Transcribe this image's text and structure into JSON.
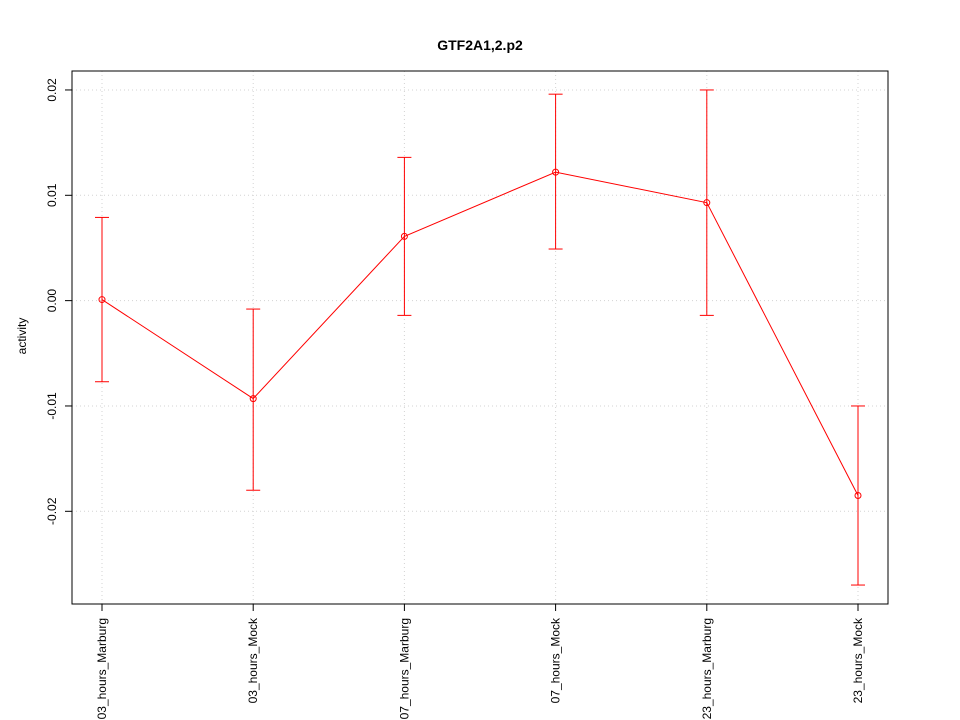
{
  "chart_data": {
    "type": "line",
    "title": "GTF2A1,2.p2",
    "xlabel": "",
    "ylabel": "activity",
    "categories": [
      "03_hours_Marburg",
      "03_hours_Mock",
      "07_hours_Marburg",
      "07_hours_Mock",
      "23_hours_Marburg",
      "23_hours_Mock"
    ],
    "series": [
      {
        "values": [
          0.0001,
          -0.0093,
          0.0061,
          0.0122,
          0.0093,
          -0.0185
        ],
        "error_low": [
          -0.0077,
          -0.018,
          -0.0014,
          0.0049,
          -0.0014,
          -0.027
        ],
        "error_high": [
          0.0079,
          -0.0008,
          0.0136,
          0.0196,
          0.02,
          -0.01
        ]
      }
    ],
    "ylim": [
      -0.0288,
      0.0218
    ],
    "yticks": [
      -0.02,
      -0.01,
      0.0,
      0.01,
      0.02
    ],
    "ytick_labels": [
      "-0.02",
      "-0.01",
      "0.00",
      "0.01",
      "0.02"
    ],
    "grid": true,
    "colors": {
      "series": "#ff0000",
      "grid": "#d3d3d3",
      "axis": "#000000"
    }
  }
}
